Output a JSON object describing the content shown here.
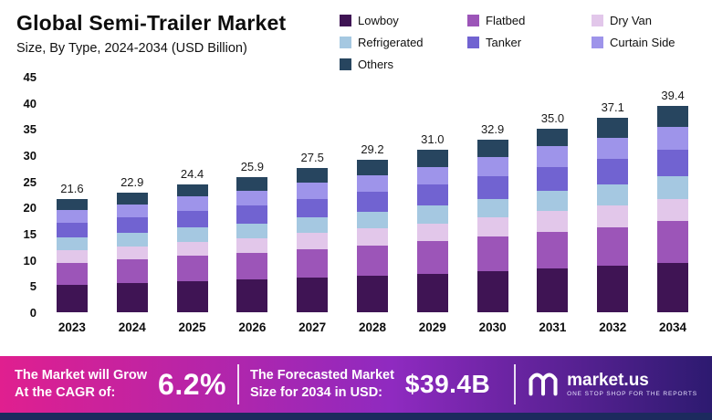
{
  "header": {
    "title": "Global Semi-Trailer Market",
    "subtitle": "Size, By Type, 2024-2034 (USD Billion)"
  },
  "chart_data": {
    "type": "bar",
    "stacked": true,
    "title": "Global Semi-Trailer Market",
    "subtitle": "Size, By Type, 2024-2034 (USD Billion)",
    "unit": "USD Billion",
    "grid": false,
    "legend_position": "top-right",
    "categories": [
      "2023",
      "2024",
      "2025",
      "2026",
      "2027",
      "2028",
      "2029",
      "2030",
      "2031",
      "2032",
      "2034"
    ],
    "totals": [
      "21.6",
      "22.9",
      "24.4",
      "25.9",
      "27.5",
      "29.2",
      "31.0",
      "32.9",
      "35.0",
      "37.1",
      "39.4"
    ],
    "ylim": [
      0,
      45
    ],
    "yticks": [
      0,
      5,
      10,
      15,
      20,
      25,
      30,
      35,
      40,
      45
    ],
    "series": [
      {
        "name": "Lowboy",
        "color": "#3f1454",
        "values": [
          5.2,
          5.5,
          5.9,
          6.2,
          6.6,
          7.0,
          7.4,
          7.9,
          8.4,
          8.9,
          9.5
        ]
      },
      {
        "name": "Flatbed",
        "color": "#9c55b8",
        "values": [
          4.3,
          4.6,
          4.9,
          5.2,
          5.5,
          5.8,
          6.2,
          6.6,
          7.0,
          7.4,
          7.9
        ]
      },
      {
        "name": "Dry Van",
        "color": "#e2c7ea",
        "values": [
          2.4,
          2.5,
          2.7,
          2.8,
          3.0,
          3.2,
          3.4,
          3.6,
          3.9,
          4.1,
          4.3
        ]
      },
      {
        "name": "Refrigerated",
        "color": "#a5c8e1",
        "values": [
          2.4,
          2.5,
          2.7,
          2.8,
          3.0,
          3.2,
          3.4,
          3.6,
          3.9,
          4.1,
          4.3
        ]
      },
      {
        "name": "Tanker",
        "color": "#7163d1",
        "values": [
          2.8,
          3.0,
          3.2,
          3.4,
          3.6,
          3.8,
          4.0,
          4.3,
          4.6,
          4.8,
          5.1
        ]
      },
      {
        "name": "Curtain Side",
        "color": "#9e94ea",
        "values": [
          2.4,
          2.5,
          2.7,
          2.8,
          3.0,
          3.2,
          3.4,
          3.6,
          3.9,
          4.1,
          4.3
        ]
      },
      {
        "name": "Others",
        "color": "#27455f",
        "values": [
          2.1,
          2.3,
          2.3,
          2.7,
          2.8,
          3.0,
          3.2,
          3.3,
          3.3,
          3.7,
          4.0
        ]
      }
    ]
  },
  "banner": {
    "cagr_label_line1": "The Market will Grow",
    "cagr_label_line2": "At the CAGR of:",
    "cagr_value": "6.2%",
    "forecast_label_line1": "The Forecasted Market",
    "forecast_label_line2": "Size for 2034 in USD:",
    "forecast_value": "$39.4B",
    "brand_name": "market.us",
    "brand_tagline": "ONE STOP SHOP FOR THE REPORTS",
    "gradient": [
      "#e01f8f",
      "#8f2ac0",
      "#2d1a70"
    ],
    "strip_color": "#1c2a5e"
  }
}
